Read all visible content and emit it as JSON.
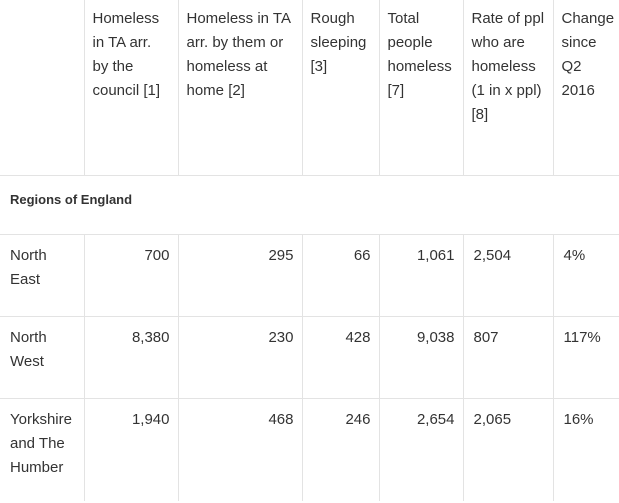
{
  "table": {
    "columns": [
      "",
      "Homeless in TA arr. by the council [1]",
      "Homeless in TA arr. by them or homeless at home [2]",
      "Rough sleeping [3]",
      "Total people homeless [7]",
      "Rate of ppl who are homeless (1 in x ppl) [8]",
      "Change since Q2 2016"
    ],
    "section_label": "Regions of England",
    "rows": [
      {
        "region": "North East",
        "ta_council": "700",
        "ta_self": "295",
        "rough": "66",
        "total": "1,061",
        "rate": "2,504",
        "change": "4%"
      },
      {
        "region": "North West",
        "ta_council": "8,380",
        "ta_self": "230",
        "rough": "428",
        "total": "9,038",
        "rate": "807",
        "change": "117%"
      },
      {
        "region": "Yorkshire and The Humber",
        "ta_council": "1,940",
        "ta_self": "468",
        "rough": "246",
        "total": "2,654",
        "rate": "2,065",
        "change": "16%"
      }
    ]
  }
}
